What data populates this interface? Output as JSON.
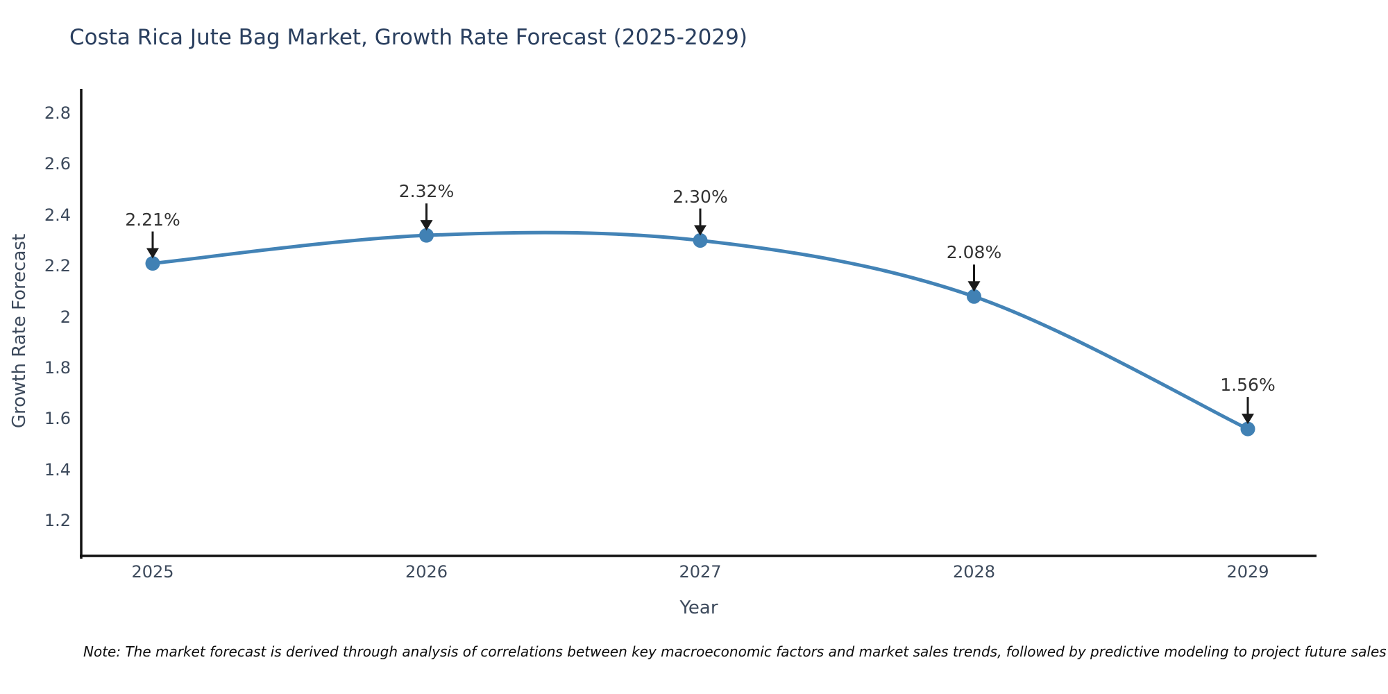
{
  "title": "Costa Rica Jute Bag Market, Growth Rate Forecast (2025-2029)",
  "note": "Note: The market forecast is derived through analysis of correlations between key macroeconomic factors and market sales trends, followed by predictive modeling to project future sales",
  "chart_data": {
    "type": "line",
    "title": "Costa Rica Jute Bag Market, Growth Rate Forecast (2025-2029)",
    "xlabel": "Year",
    "ylabel": "Growth Rate Forecast",
    "categories": [
      "2025",
      "2026",
      "2027",
      "2028",
      "2029"
    ],
    "values": [
      2.21,
      2.32,
      2.3,
      2.08,
      1.56
    ],
    "point_labels": [
      "2.21%",
      "2.32%",
      "2.30%",
      "2.08%",
      "1.56%"
    ],
    "y_ticks": [
      2.8,
      2.6,
      2.4,
      2.2,
      2,
      1.8,
      1.6,
      1.4,
      1.2
    ],
    "y_tick_labels": [
      "2.8",
      "2.6",
      "2.4",
      "2.2",
      "2",
      "1.8",
      "1.6",
      "1.4",
      "1.2"
    ],
    "ylim": [
      1.07,
      2.9
    ],
    "grid": false,
    "legend": "none",
    "line_style": "smooth",
    "line_color": "#4383b6",
    "marker_color": "#4181b4",
    "arrow_color": "#1a1a1a",
    "axis_color": "#111111"
  }
}
